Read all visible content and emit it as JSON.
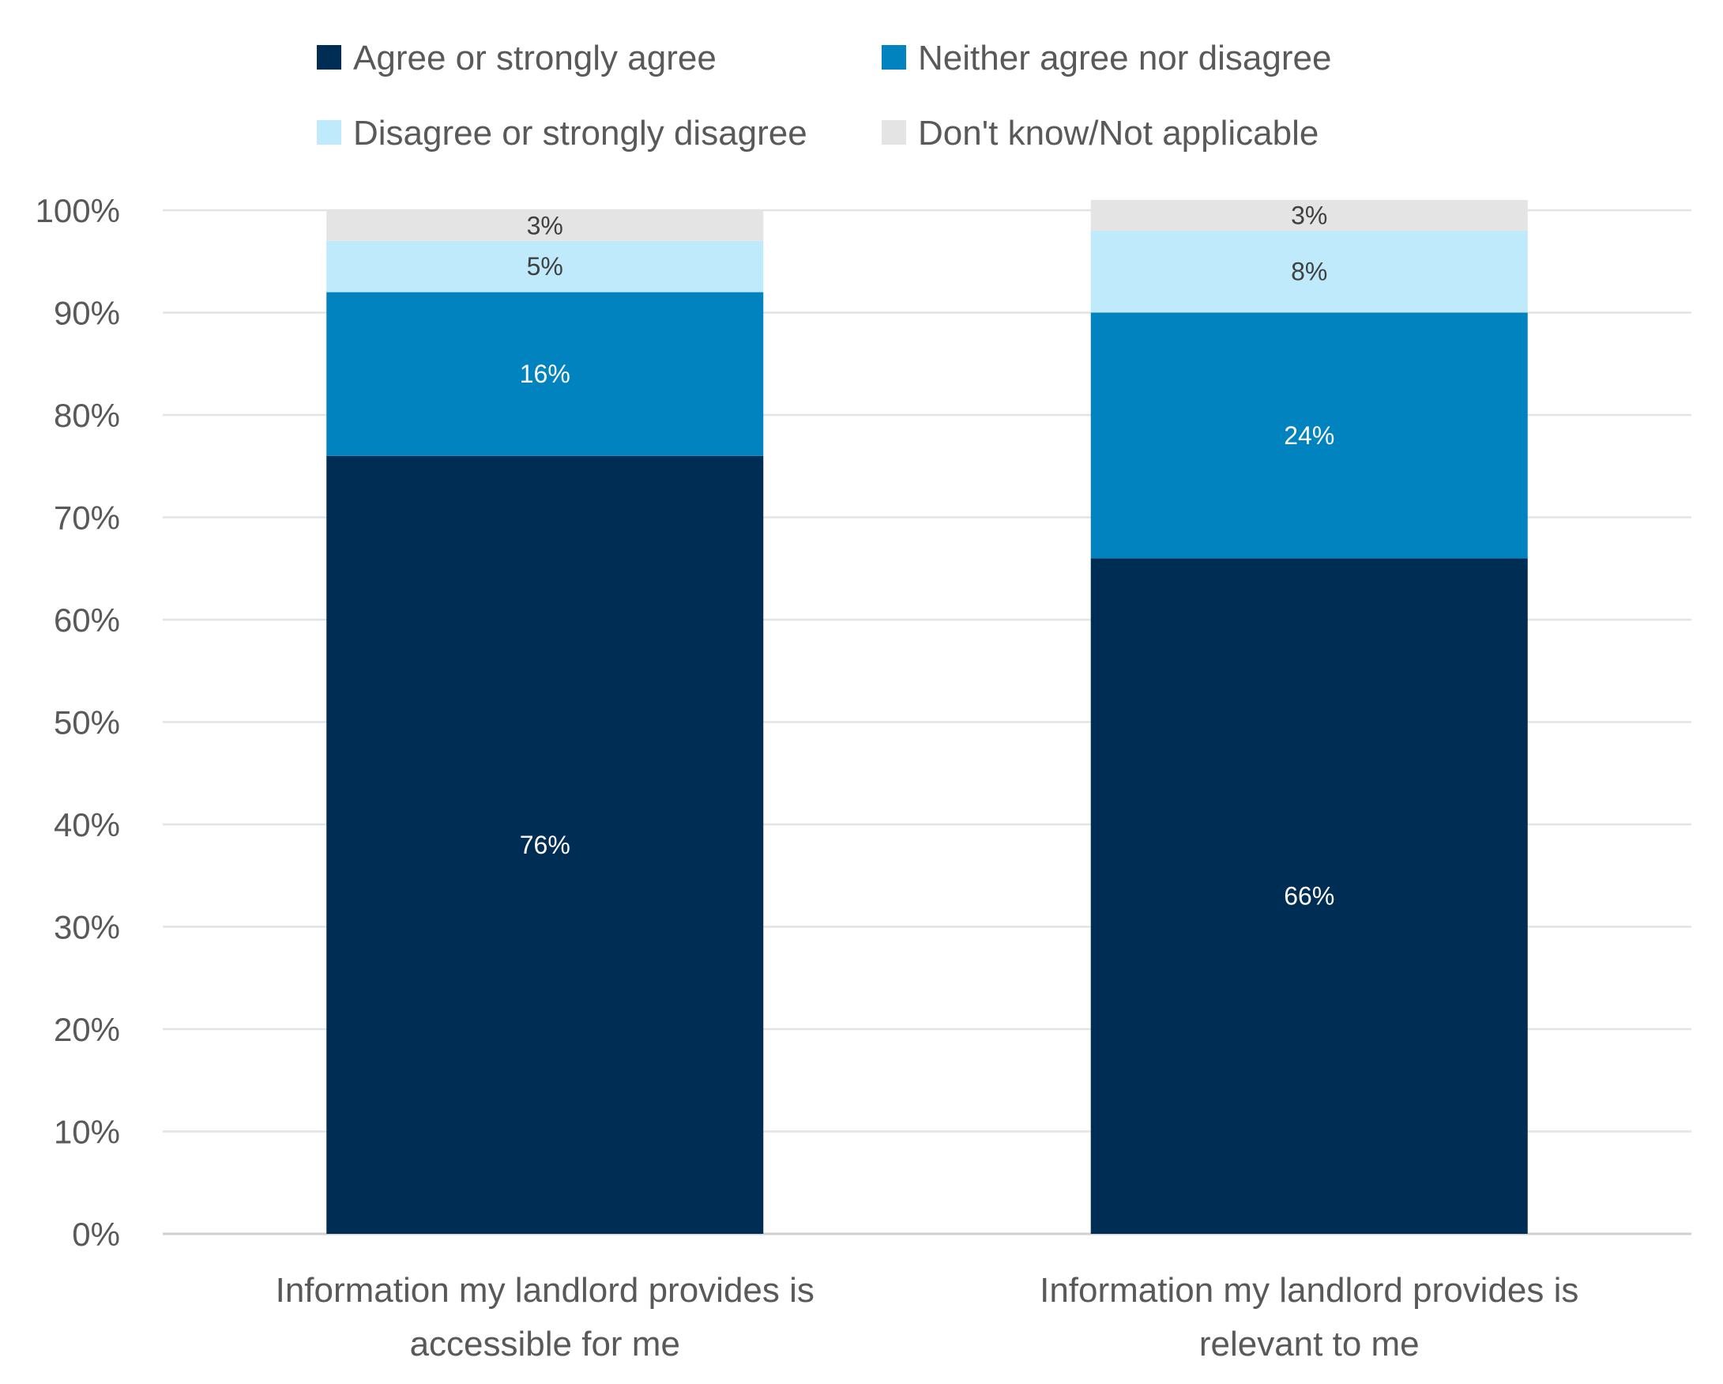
{
  "chart_data": {
    "type": "bar",
    "stacked": true,
    "categories": [
      [
        "Information my landlord provides is",
        "accessible for me"
      ],
      [
        "Information my landlord provides is",
        "relevant to me"
      ]
    ],
    "series": [
      {
        "name": "Agree or strongly agree",
        "color": "#002d54",
        "label_color": "#ffffff",
        "values": [
          76,
          66
        ]
      },
      {
        "name": "Neither agree nor disagree",
        "color": "#0083bf",
        "label_color": "#ffffff",
        "values": [
          16,
          24
        ]
      },
      {
        "name": "Disagree or strongly disagree",
        "color": "#bfeafc",
        "label_color": "#404040",
        "values": [
          5,
          8
        ]
      },
      {
        "name": "Don't know/Not applicable",
        "color": "#e4e4e4",
        "label_color": "#404040",
        "values": [
          3,
          3
        ]
      }
    ],
    "data_labels": [
      [
        "76%",
        "16%",
        "5%",
        "3%"
      ],
      [
        "66%",
        "24%",
        "8%",
        "3%"
      ]
    ],
    "ylim": [
      0,
      100
    ],
    "yticks": [
      "0%",
      "10%",
      "20%",
      "30%",
      "40%",
      "50%",
      "60%",
      "70%",
      "80%",
      "90%",
      "100%"
    ],
    "grid": true,
    "legend_position": "top",
    "xlabel": "",
    "ylabel": "",
    "title": ""
  }
}
